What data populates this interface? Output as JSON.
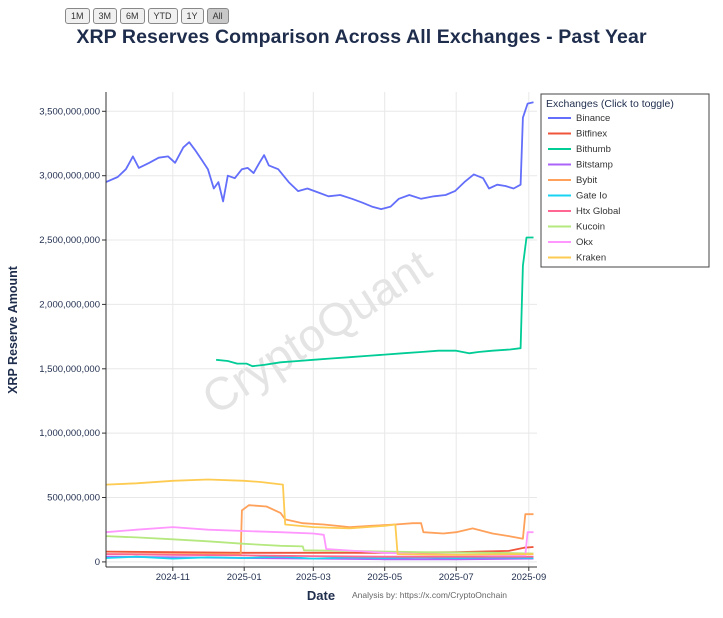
{
  "range_buttons": [
    "1M",
    "3M",
    "6M",
    "YTD",
    "1Y",
    "All"
  ],
  "active_range": "All",
  "title": "XRP Reserves Comparison Across All Exchanges - Past Year",
  "xlabel": "Date",
  "ylabel": "XRP Reserve Amount",
  "watermark": "CryptoQuant",
  "credit": "Analysis by: https://x.com/CryptoOnchain",
  "legend_title": "Exchanges (Click to toggle)",
  "chart_data": {
    "type": "line",
    "title": "XRP Reserves Comparison Across All Exchanges - Past Year",
    "xlabel": "Date",
    "ylabel": "XRP Reserve Amount",
    "xlim": [
      "2024-09-05",
      "2025-09-08"
    ],
    "ylim": [
      -40000000,
      3650000000
    ],
    "x_ticks": [
      {
        "date": "2024-11-01",
        "label": "2024-11"
      },
      {
        "date": "2025-01-01",
        "label": "2025-01"
      },
      {
        "date": "2025-03-01",
        "label": "2025-03"
      },
      {
        "date": "2025-05-01",
        "label": "2025-05"
      },
      {
        "date": "2025-07-01",
        "label": "2025-07"
      },
      {
        "date": "2025-09-01",
        "label": "2025-09"
      }
    ],
    "y_ticks": [
      {
        "value": 0,
        "label": "0"
      },
      {
        "value": 500000000,
        "label": "500,000,000"
      },
      {
        "value": 1000000000,
        "label": "1,000,000,000"
      },
      {
        "value": 1500000000,
        "label": "1,500,000,000"
      },
      {
        "value": 2000000000,
        "label": "2,000,000,000"
      },
      {
        "value": 2500000000,
        "label": "2,500,000,000"
      },
      {
        "value": 3000000000,
        "label": "3,000,000,000"
      },
      {
        "value": 3500000000,
        "label": "3,500,000,000"
      }
    ],
    "grid": true,
    "legend_position": "right",
    "series": [
      {
        "name": "Binance",
        "color": "#636efa",
        "points": [
          [
            "2024-09-05",
            2950000000
          ],
          [
            "2024-09-15",
            2990000000
          ],
          [
            "2024-09-22",
            3050000000
          ],
          [
            "2024-09-28",
            3150000000
          ],
          [
            "2024-10-03",
            3060000000
          ],
          [
            "2024-10-12",
            3100000000
          ],
          [
            "2024-10-20",
            3140000000
          ],
          [
            "2024-10-28",
            3150000000
          ],
          [
            "2024-11-03",
            3100000000
          ],
          [
            "2024-11-10",
            3220000000
          ],
          [
            "2024-11-15",
            3260000000
          ],
          [
            "2024-11-20",
            3200000000
          ],
          [
            "2024-11-26",
            3120000000
          ],
          [
            "2024-12-01",
            3050000000
          ],
          [
            "2024-12-06",
            2900000000
          ],
          [
            "2024-12-10",
            2950000000
          ],
          [
            "2024-12-14",
            2800000000
          ],
          [
            "2024-12-18",
            3000000000
          ],
          [
            "2024-12-24",
            2980000000
          ],
          [
            "2024-12-30",
            3050000000
          ],
          [
            "2025-01-04",
            3060000000
          ],
          [
            "2025-01-09",
            3020000000
          ],
          [
            "2025-01-14",
            3100000000
          ],
          [
            "2025-01-18",
            3160000000
          ],
          [
            "2025-01-22",
            3080000000
          ],
          [
            "2025-01-30",
            3050000000
          ],
          [
            "2025-02-08",
            2950000000
          ],
          [
            "2025-02-16",
            2880000000
          ],
          [
            "2025-02-24",
            2900000000
          ],
          [
            "2025-03-05",
            2870000000
          ],
          [
            "2025-03-14",
            2840000000
          ],
          [
            "2025-03-24",
            2850000000
          ],
          [
            "2025-04-03",
            2820000000
          ],
          [
            "2025-04-12",
            2790000000
          ],
          [
            "2025-04-20",
            2760000000
          ],
          [
            "2025-04-28",
            2740000000
          ],
          [
            "2025-05-06",
            2760000000
          ],
          [
            "2025-05-13",
            2820000000
          ],
          [
            "2025-05-22",
            2850000000
          ],
          [
            "2025-06-01",
            2820000000
          ],
          [
            "2025-06-12",
            2840000000
          ],
          [
            "2025-06-22",
            2850000000
          ],
          [
            "2025-06-30",
            2880000000
          ],
          [
            "2025-07-08",
            2950000000
          ],
          [
            "2025-07-16",
            3010000000
          ],
          [
            "2025-07-24",
            2980000000
          ],
          [
            "2025-07-29",
            2900000000
          ],
          [
            "2025-08-05",
            2930000000
          ],
          [
            "2025-08-12",
            2920000000
          ],
          [
            "2025-08-19",
            2900000000
          ],
          [
            "2025-08-25",
            2930000000
          ],
          [
            "2025-08-27",
            3450000000
          ],
          [
            "2025-08-31",
            3560000000
          ],
          [
            "2025-09-05",
            3570000000
          ]
        ]
      },
      {
        "name": "Bitfinex",
        "color": "#ef553b",
        "points": [
          [
            "2024-09-05",
            80000000
          ],
          [
            "2024-11-01",
            75000000
          ],
          [
            "2025-01-01",
            70000000
          ],
          [
            "2025-03-01",
            70000000
          ],
          [
            "2025-05-01",
            70000000
          ],
          [
            "2025-07-01",
            75000000
          ],
          [
            "2025-08-15",
            85000000
          ],
          [
            "2025-08-28",
            110000000
          ],
          [
            "2025-09-05",
            115000000
          ]
        ]
      },
      {
        "name": "Bithumb",
        "color": "#00cc96",
        "points": [
          [
            "2024-12-08",
            1570000000
          ],
          [
            "2024-12-18",
            1560000000
          ],
          [
            "2024-12-26",
            1540000000
          ],
          [
            "2025-01-03",
            1540000000
          ],
          [
            "2025-01-08",
            1520000000
          ],
          [
            "2025-01-18",
            1530000000
          ],
          [
            "2025-02-01",
            1550000000
          ],
          [
            "2025-02-16",
            1560000000
          ],
          [
            "2025-03-01",
            1570000000
          ],
          [
            "2025-03-16",
            1580000000
          ],
          [
            "2025-04-01",
            1590000000
          ],
          [
            "2025-04-16",
            1600000000
          ],
          [
            "2025-05-01",
            1610000000
          ],
          [
            "2025-05-16",
            1620000000
          ],
          [
            "2025-06-01",
            1630000000
          ],
          [
            "2025-06-16",
            1640000000
          ],
          [
            "2025-07-01",
            1640000000
          ],
          [
            "2025-07-12",
            1620000000
          ],
          [
            "2025-07-20",
            1630000000
          ],
          [
            "2025-08-01",
            1640000000
          ],
          [
            "2025-08-16",
            1650000000
          ],
          [
            "2025-08-25",
            1660000000
          ],
          [
            "2025-08-27",
            2300000000
          ],
          [
            "2025-08-30",
            2520000000
          ],
          [
            "2025-09-05",
            2520000000
          ]
        ]
      },
      {
        "name": "Bitstamp",
        "color": "#ab63fa",
        "points": [
          [
            "2024-09-05",
            40000000
          ],
          [
            "2024-11-01",
            35000000
          ],
          [
            "2025-01-01",
            30000000
          ],
          [
            "2025-03-01",
            25000000
          ],
          [
            "2025-05-01",
            20000000
          ],
          [
            "2025-07-01",
            20000000
          ],
          [
            "2025-09-05",
            25000000
          ]
        ]
      },
      {
        "name": "Bybit",
        "color": "#ffa15a",
        "points": [
          [
            "2024-09-05",
            60000000
          ],
          [
            "2024-11-01",
            60000000
          ],
          [
            "2024-12-29",
            60000000
          ],
          [
            "2024-12-30",
            400000000
          ],
          [
            "2025-01-05",
            440000000
          ],
          [
            "2025-01-20",
            430000000
          ],
          [
            "2025-02-01",
            380000000
          ],
          [
            "2025-02-05",
            330000000
          ],
          [
            "2025-02-20",
            300000000
          ],
          [
            "2025-03-10",
            290000000
          ],
          [
            "2025-04-01",
            270000000
          ],
          [
            "2025-04-20",
            280000000
          ],
          [
            "2025-05-10",
            290000000
          ],
          [
            "2025-05-25",
            300000000
          ],
          [
            "2025-06-01",
            300000000
          ],
          [
            "2025-06-03",
            230000000
          ],
          [
            "2025-06-20",
            220000000
          ],
          [
            "2025-07-01",
            230000000
          ],
          [
            "2025-07-15",
            260000000
          ],
          [
            "2025-08-01",
            220000000
          ],
          [
            "2025-08-15",
            200000000
          ],
          [
            "2025-08-27",
            180000000
          ],
          [
            "2025-08-29",
            370000000
          ],
          [
            "2025-09-05",
            370000000
          ]
        ]
      },
      {
        "name": "Gate Io",
        "color": "#19d3f3",
        "points": [
          [
            "2024-09-05",
            30000000
          ],
          [
            "2024-10-01",
            40000000
          ],
          [
            "2024-11-01",
            25000000
          ],
          [
            "2024-12-01",
            35000000
          ],
          [
            "2025-01-01",
            30000000
          ],
          [
            "2025-02-01",
            40000000
          ],
          [
            "2025-03-01",
            25000000
          ],
          [
            "2025-04-01",
            35000000
          ],
          [
            "2025-05-01",
            30000000
          ],
          [
            "2025-06-01",
            35000000
          ],
          [
            "2025-07-01",
            30000000
          ],
          [
            "2025-08-01",
            35000000
          ],
          [
            "2025-09-05",
            30000000
          ]
        ]
      },
      {
        "name": "Htx Global",
        "color": "#ff6692",
        "points": [
          [
            "2024-09-05",
            60000000
          ],
          [
            "2024-11-01",
            55000000
          ],
          [
            "2025-01-01",
            50000000
          ],
          [
            "2025-03-01",
            45000000
          ],
          [
            "2025-05-01",
            40000000
          ],
          [
            "2025-07-01",
            40000000
          ],
          [
            "2025-09-05",
            40000000
          ]
        ]
      },
      {
        "name": "Kucoin",
        "color": "#b6e880",
        "points": [
          [
            "2024-09-05",
            200000000
          ],
          [
            "2024-10-01",
            190000000
          ],
          [
            "2024-11-01",
            175000000
          ],
          [
            "2024-12-01",
            160000000
          ],
          [
            "2025-01-01",
            140000000
          ],
          [
            "2025-02-01",
            125000000
          ],
          [
            "2025-02-20",
            120000000
          ],
          [
            "2025-02-21",
            90000000
          ],
          [
            "2025-04-01",
            85000000
          ],
          [
            "2025-06-01",
            75000000
          ],
          [
            "2025-08-01",
            70000000
          ],
          [
            "2025-09-05",
            65000000
          ]
        ]
      },
      {
        "name": "Okx",
        "color": "#ff97ff",
        "points": [
          [
            "2024-09-05",
            230000000
          ],
          [
            "2024-10-01",
            250000000
          ],
          [
            "2024-11-01",
            270000000
          ],
          [
            "2024-12-01",
            250000000
          ],
          [
            "2025-01-01",
            240000000
          ],
          [
            "2025-02-01",
            230000000
          ],
          [
            "2025-03-01",
            220000000
          ],
          [
            "2025-03-10",
            210000000
          ],
          [
            "2025-03-12",
            100000000
          ],
          [
            "2025-04-15",
            80000000
          ],
          [
            "2025-05-01",
            70000000
          ],
          [
            "2025-06-01",
            60000000
          ],
          [
            "2025-08-01",
            50000000
          ],
          [
            "2025-08-29",
            50000000
          ],
          [
            "2025-08-31",
            230000000
          ],
          [
            "2025-09-05",
            230000000
          ]
        ]
      },
      {
        "name": "Kraken",
        "color": "#fecb52",
        "points": [
          [
            "2024-09-05",
            600000000
          ],
          [
            "2024-10-01",
            610000000
          ],
          [
            "2024-11-01",
            630000000
          ],
          [
            "2024-12-01",
            640000000
          ],
          [
            "2025-01-01",
            630000000
          ],
          [
            "2025-01-15",
            620000000
          ],
          [
            "2025-02-03",
            600000000
          ],
          [
            "2025-02-05",
            290000000
          ],
          [
            "2025-03-01",
            270000000
          ],
          [
            "2025-04-01",
            260000000
          ],
          [
            "2025-05-01",
            280000000
          ],
          [
            "2025-05-10",
            290000000
          ],
          [
            "2025-05-12",
            60000000
          ],
          [
            "2025-07-01",
            55000000
          ],
          [
            "2025-09-05",
            60000000
          ]
        ]
      }
    ]
  }
}
